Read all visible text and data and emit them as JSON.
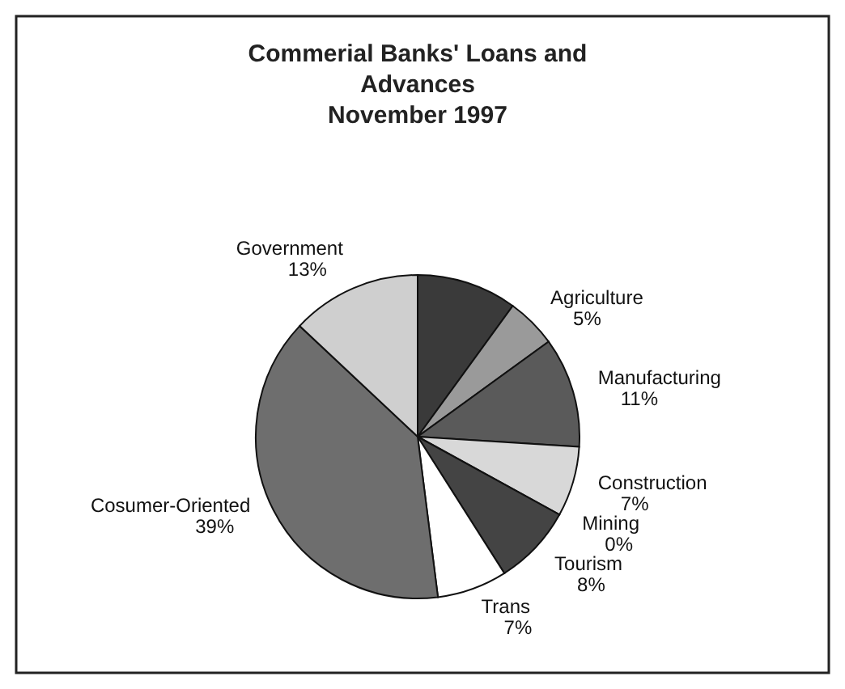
{
  "chart_data": {
    "type": "pie",
    "title": "Commerial Banks' Loans and Advances",
    "subtitle": "November 1997",
    "categories": [
      null,
      "Agriculture",
      "Manufacturing",
      "Construction",
      "Mining",
      "Tourism",
      "Trans",
      "Cosumer-Oriented",
      "Government"
    ],
    "values": [
      10,
      5,
      11,
      7,
      0,
      8,
      7,
      39,
      13
    ],
    "value_labels": [
      null,
      "5%",
      "11%",
      "7%",
      "0%",
      "8%",
      "7%",
      "39%",
      "13%"
    ],
    "colors": [
      "#3a3a3a",
      "#9a9a9a",
      "#5a5a5a",
      "#d8d8d8",
      null,
      "#444444",
      "#ffffff",
      "#6e6e6e",
      "#cfcfcf"
    ]
  }
}
